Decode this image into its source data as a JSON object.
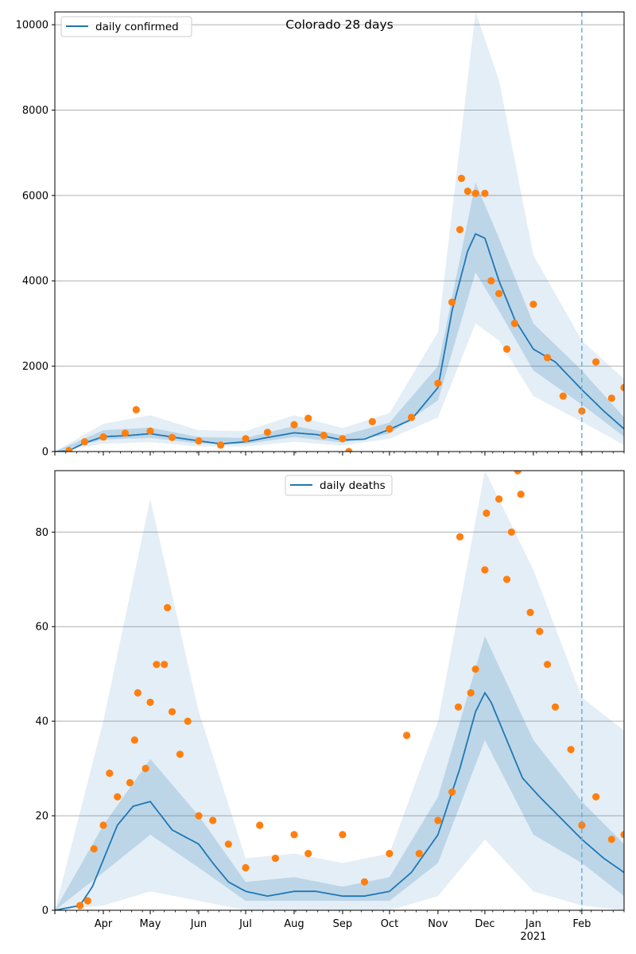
{
  "chart_data": [
    {
      "type": "line",
      "title": "Colorado 28 days",
      "xlabel": "",
      "ylabel": "",
      "x_range": [
        "2020-03-01",
        "2021-02-28"
      ],
      "ylim": [
        0,
        10300
      ],
      "yticks": [
        0,
        2000,
        4000,
        6000,
        8000,
        10000
      ],
      "grid": "horizontal",
      "legend": {
        "position": "top-left",
        "entries": [
          "daily confirmed"
        ]
      },
      "forecast_start": "2021-02-01",
      "series": [
        {
          "name": "daily confirmed",
          "kind": "model_median_line",
          "color": "#1f77b4",
          "points": [
            [
              "2020-03-01",
              0
            ],
            [
              "2020-03-10",
              20
            ],
            [
              "2020-03-20",
              200
            ],
            [
              "2020-04-01",
              350
            ],
            [
              "2020-04-15",
              370
            ],
            [
              "2020-05-01",
              420
            ],
            [
              "2020-05-15",
              340
            ],
            [
              "2020-06-01",
              250
            ],
            [
              "2020-06-15",
              180
            ],
            [
              "2020-07-01",
              230
            ],
            [
              "2020-07-15",
              330
            ],
            [
              "2020-08-01",
              440
            ],
            [
              "2020-08-15",
              400
            ],
            [
              "2020-09-01",
              270
            ],
            [
              "2020-09-15",
              290
            ],
            [
              "2020-10-01",
              520
            ],
            [
              "2020-10-15",
              750
            ],
            [
              "2020-11-01",
              1500
            ],
            [
              "2020-11-10",
              3300
            ],
            [
              "2020-11-20",
              4700
            ],
            [
              "2020-11-25",
              5100
            ],
            [
              "2020-12-01",
              5000
            ],
            [
              "2020-12-10",
              4000
            ],
            [
              "2020-12-20",
              3100
            ],
            [
              "2021-01-01",
              2400
            ],
            [
              "2021-01-15",
              2100
            ],
            [
              "2021-02-01",
              1450
            ],
            [
              "2021-02-15",
              950
            ],
            [
              "2021-02-28",
              530
            ]
          ]
        },
        {
          "name": "",
          "kind": "uncertainty_band_inner",
          "color": "#1f77b4",
          "points": [
            [
              "2020-03-01",
              0,
              0
            ],
            [
              "2020-04-01",
              280,
              500
            ],
            [
              "2020-05-01",
              320,
              560
            ],
            [
              "2020-06-01",
              190,
              340
            ],
            [
              "2020-07-01",
              180,
              320
            ],
            [
              "2020-08-01",
              340,
              600
            ],
            [
              "2020-09-01",
              210,
              380
            ],
            [
              "2020-10-01",
              420,
              680
            ],
            [
              "2020-11-01",
              1200,
              2000
            ],
            [
              "2020-11-25",
              4200,
              6300
            ],
            [
              "2020-12-10",
              3300,
              5000
            ],
            [
              "2021-01-01",
              1900,
              3000
            ],
            [
              "2021-02-01",
              1100,
              1900
            ],
            [
              "2021-02-28",
              350,
              800
            ]
          ]
        },
        {
          "name": "",
          "kind": "uncertainty_band_outer",
          "color": "#1f77b4",
          "points": [
            [
              "2020-03-01",
              0,
              0
            ],
            [
              "2020-04-01",
              180,
              650
            ],
            [
              "2020-05-01",
              220,
              850
            ],
            [
              "2020-06-01",
              120,
              500
            ],
            [
              "2020-07-01",
              120,
              480
            ],
            [
              "2020-08-01",
              230,
              850
            ],
            [
              "2020-09-01",
              140,
              550
            ],
            [
              "2020-10-01",
              300,
              900
            ],
            [
              "2020-11-01",
              800,
              2800
            ],
            [
              "2020-11-25",
              3000,
              10300
            ],
            [
              "2020-12-10",
              2600,
              8700
            ],
            [
              "2021-01-01",
              1300,
              4600
            ],
            [
              "2021-02-01",
              700,
              2600
            ],
            [
              "2021-02-28",
              150,
              1700
            ]
          ]
        },
        {
          "name": "",
          "kind": "observed_points",
          "color": "#ff7f0e",
          "points": [
            [
              "2020-03-10",
              20
            ],
            [
              "2020-03-20",
              230
            ],
            [
              "2020-04-01",
              340
            ],
            [
              "2020-04-15",
              430
            ],
            [
              "2020-04-22",
              980
            ],
            [
              "2020-05-01",
              480
            ],
            [
              "2020-05-15",
              330
            ],
            [
              "2020-06-01",
              250
            ],
            [
              "2020-06-15",
              150
            ],
            [
              "2020-07-01",
              300
            ],
            [
              "2020-07-15",
              450
            ],
            [
              "2020-08-01",
              630
            ],
            [
              "2020-08-10",
              780
            ],
            [
              "2020-08-20",
              380
            ],
            [
              "2020-09-01",
              300
            ],
            [
              "2020-09-05",
              0
            ],
            [
              "2020-09-20",
              700
            ],
            [
              "2020-10-01",
              530
            ],
            [
              "2020-10-15",
              800
            ],
            [
              "2020-11-01",
              1600
            ],
            [
              "2020-11-10",
              3500
            ],
            [
              "2020-11-15",
              5200
            ],
            [
              "2020-11-16",
              6400
            ],
            [
              "2020-11-20",
              6100
            ],
            [
              "2020-11-25",
              6050
            ],
            [
              "2020-12-01",
              6050
            ],
            [
              "2020-12-05",
              4000
            ],
            [
              "2020-12-10",
              3700
            ],
            [
              "2020-12-15",
              2400
            ],
            [
              "2020-12-20",
              3000
            ],
            [
              "2021-01-01",
              3450
            ],
            [
              "2021-01-10",
              2200
            ],
            [
              "2021-01-20",
              1300
            ],
            [
              "2021-02-01",
              950
            ],
            [
              "2021-02-10",
              2100
            ],
            [
              "2021-02-20",
              1250
            ],
            [
              "2021-02-28",
              1500
            ]
          ]
        }
      ]
    },
    {
      "type": "line",
      "title": "",
      "xlabel": "",
      "ylabel": "",
      "x_range": [
        "2020-03-01",
        "2021-02-28"
      ],
      "ylim": [
        0,
        93
      ],
      "yticks": [
        0,
        20,
        40,
        60,
        80
      ],
      "xticks": [
        "Apr",
        "May",
        "Jun",
        "Jul",
        "Aug",
        "Sep",
        "Oct",
        "Nov",
        "Dec",
        "Jan",
        "Feb"
      ],
      "xtick_year": "2021",
      "grid": "horizontal",
      "legend": {
        "position": "top-center",
        "entries": [
          "daily deaths"
        ]
      },
      "forecast_start": "2021-02-01",
      "series": [
        {
          "name": "daily deaths",
          "kind": "model_median_line",
          "color": "#1f77b4",
          "points": [
            [
              "2020-03-01",
              0
            ],
            [
              "2020-03-17",
              1
            ],
            [
              "2020-03-25",
              5
            ],
            [
              "2020-04-10",
              18
            ],
            [
              "2020-04-20",
              22
            ],
            [
              "2020-05-01",
              23
            ],
            [
              "2020-05-15",
              17
            ],
            [
              "2020-06-01",
              14
            ],
            [
              "2020-06-10",
              10
            ],
            [
              "2020-06-20",
              6
            ],
            [
              "2020-07-01",
              4
            ],
            [
              "2020-07-15",
              3
            ],
            [
              "2020-08-01",
              4
            ],
            [
              "2020-08-15",
              4
            ],
            [
              "2020-09-01",
              3
            ],
            [
              "2020-09-15",
              3
            ],
            [
              "2020-10-01",
              4
            ],
            [
              "2020-10-15",
              8
            ],
            [
              "2020-11-01",
              16
            ],
            [
              "2020-11-15",
              30
            ],
            [
              "2020-11-25",
              42
            ],
            [
              "2020-12-01",
              46
            ],
            [
              "2020-12-05",
              44
            ],
            [
              "2020-12-15",
              36
            ],
            [
              "2020-12-25",
              28
            ],
            [
              "2021-01-05",
              24
            ],
            [
              "2021-01-20",
              19
            ],
            [
              "2021-02-01",
              15
            ],
            [
              "2021-02-15",
              11
            ],
            [
              "2021-02-28",
              8
            ]
          ]
        },
        {
          "name": "",
          "kind": "uncertainty_band_inner",
          "color": "#1f77b4",
          "points": [
            [
              "2020-03-01",
              0,
              0
            ],
            [
              "2020-04-01",
              8,
              18
            ],
            [
              "2020-05-01",
              16,
              32
            ],
            [
              "2020-06-01",
              9,
              20
            ],
            [
              "2020-07-01",
              2,
              6
            ],
            [
              "2020-08-01",
              2,
              7
            ],
            [
              "2020-09-01",
              2,
              5
            ],
            [
              "2020-10-01",
              2,
              7
            ],
            [
              "2020-11-01",
              10,
              24
            ],
            [
              "2020-12-01",
              36,
              58
            ],
            [
              "2021-01-01",
              16,
              36
            ],
            [
              "2021-02-01",
              10,
              23
            ],
            [
              "2021-02-28",
              3,
              14
            ]
          ]
        },
        {
          "name": "",
          "kind": "uncertainty_band_outer",
          "color": "#1f77b4",
          "points": [
            [
              "2020-03-01",
              0,
              0
            ],
            [
              "2020-04-01",
              1,
              40
            ],
            [
              "2020-05-01",
              4,
              87
            ],
            [
              "2020-06-01",
              2,
              42
            ],
            [
              "2020-07-01",
              0,
              11
            ],
            [
              "2020-08-01",
              0,
              12
            ],
            [
              "2020-09-01",
              0,
              10
            ],
            [
              "2020-10-01",
              0,
              12
            ],
            [
              "2020-11-01",
              3,
              40
            ],
            [
              "2020-12-01",
              15,
              93
            ],
            [
              "2021-01-01",
              4,
              72
            ],
            [
              "2021-02-01",
              1,
              45
            ],
            [
              "2021-02-28",
              0,
              38
            ]
          ]
        },
        {
          "name": "",
          "kind": "observed_points",
          "color": "#ff7f0e",
          "points": [
            [
              "2020-03-17",
              1
            ],
            [
              "2020-03-22",
              2
            ],
            [
              "2020-03-26",
              13
            ],
            [
              "2020-04-01",
              18
            ],
            [
              "2020-04-05",
              29
            ],
            [
              "2020-04-10",
              24
            ],
            [
              "2020-04-18",
              27
            ],
            [
              "2020-04-21",
              36
            ],
            [
              "2020-04-23",
              46
            ],
            [
              "2020-04-28",
              30
            ],
            [
              "2020-05-01",
              44
            ],
            [
              "2020-05-05",
              52
            ],
            [
              "2020-05-10",
              52
            ],
            [
              "2020-05-12",
              64
            ],
            [
              "2020-05-15",
              42
            ],
            [
              "2020-05-20",
              33
            ],
            [
              "2020-05-25",
              40
            ],
            [
              "2020-06-01",
              20
            ],
            [
              "2020-06-10",
              19
            ],
            [
              "2020-06-20",
              14
            ],
            [
              "2020-07-01",
              9
            ],
            [
              "2020-07-10",
              18
            ],
            [
              "2020-07-20",
              11
            ],
            [
              "2020-08-01",
              16
            ],
            [
              "2020-08-10",
              12
            ],
            [
              "2020-09-01",
              16
            ],
            [
              "2020-09-15",
              6
            ],
            [
              "2020-10-01",
              12
            ],
            [
              "2020-10-12",
              37
            ],
            [
              "2020-10-20",
              12
            ],
            [
              "2020-11-01",
              19
            ],
            [
              "2020-11-10",
              25
            ],
            [
              "2020-11-14",
              43
            ],
            [
              "2020-11-15",
              79
            ],
            [
              "2020-11-22",
              46
            ],
            [
              "2020-11-25",
              51
            ],
            [
              "2020-12-01",
              72
            ],
            [
              "2020-12-02",
              84
            ],
            [
              "2020-12-10",
              87
            ],
            [
              "2020-12-15",
              70
            ],
            [
              "2020-12-18",
              80
            ],
            [
              "2020-12-22",
              93
            ],
            [
              "2020-12-24",
              88
            ],
            [
              "2020-12-30",
              63
            ],
            [
              "2021-01-05",
              59
            ],
            [
              "2021-01-10",
              52
            ],
            [
              "2021-01-15",
              43
            ],
            [
              "2021-01-25",
              34
            ],
            [
              "2021-02-01",
              18
            ],
            [
              "2021-02-10",
              24
            ],
            [
              "2021-02-20",
              15
            ],
            [
              "2021-02-28",
              16
            ]
          ]
        }
      ]
    }
  ]
}
